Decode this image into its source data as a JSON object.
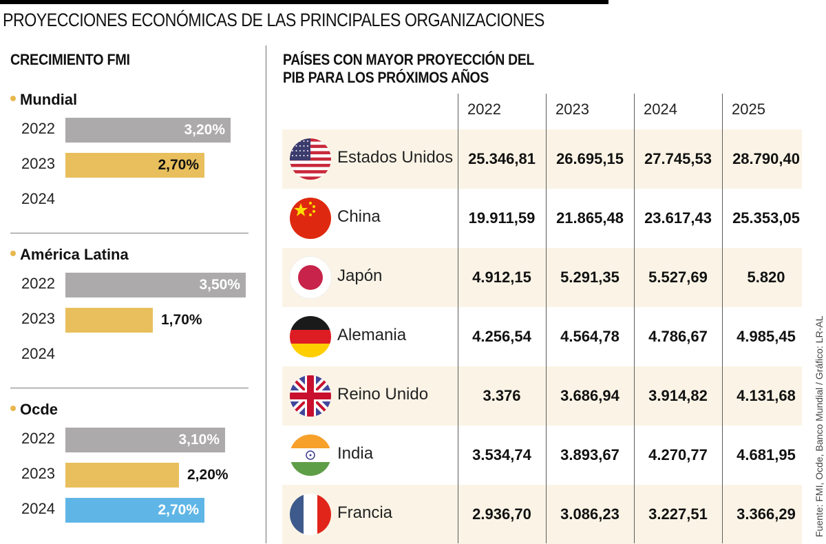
{
  "title": "PROYECCIONES ECONÓMICAS DE LAS PRINCIPALES ORGANIZACIONES",
  "source": "Fuente: FMI, Ocde, Banco Mundial / Gráfico: LR-AL",
  "chart_data": [
    {
      "type": "bar",
      "title": "CRECIMIENTO FMI",
      "orientation": "horizontal",
      "categories": [
        "2022",
        "2023",
        "2024"
      ],
      "value_unit": "%",
      "xlim": [
        0,
        3.5
      ],
      "colors": {
        "2022": "#acaaab",
        "2023": "#e8bf5c",
        "2024": "#5fb6e6"
      },
      "groups": [
        {
          "name": "Mundial",
          "values": [
            3.2,
            2.7,
            null
          ],
          "labels": [
            "3,20%",
            "2,70%",
            ""
          ]
        },
        {
          "name": "América Latina",
          "values": [
            3.5,
            1.7,
            null
          ],
          "labels": [
            "3,50%",
            "1,70%",
            ""
          ]
        },
        {
          "name": "Ocde",
          "values": [
            3.1,
            2.2,
            2.7
          ],
          "labels": [
            "3,10%",
            "2,20%",
            "2,70%"
          ]
        }
      ]
    },
    {
      "type": "table",
      "title": "PAÍSES CON MAYOR PROYECCIÓN DEL PIB PARA LOS PRÓXIMOS AÑOS",
      "title_lines": [
        "PAÍSES CON MAYOR PROYECCIÓN DEL",
        "PIB PARA LOS PRÓXIMOS AÑOS"
      ],
      "columns": [
        "2022",
        "2023",
        "2024",
        "2025"
      ],
      "rows": [
        {
          "country": "Estados Unidos",
          "flag": "us-flag-icon",
          "values": [
            "25.346,81",
            "26.695,15",
            "27.745,53",
            "28.790,40"
          ]
        },
        {
          "country": "China",
          "flag": "china-flag-icon",
          "values": [
            "19.911,59",
            "21.865,48",
            "23.617,43",
            "25.353,05"
          ]
        },
        {
          "country": "Japón",
          "flag": "japan-flag-icon",
          "values": [
            "4.912,15",
            "5.291,35",
            "5.527,69",
            "5.820"
          ]
        },
        {
          "country": "Alemania",
          "flag": "germany-flag-icon",
          "values": [
            "4.256,54",
            "4.564,78",
            "4.786,67",
            "4.985,45"
          ]
        },
        {
          "country": "Reino Unido",
          "flag": "uk-flag-icon",
          "values": [
            "3.376",
            "3.686,94",
            "3.914,82",
            "4.131,68"
          ]
        },
        {
          "country": "India",
          "flag": "india-flag-icon",
          "values": [
            "3.534,74",
            "3.893,67",
            "4.270,77",
            "4.681,95"
          ]
        },
        {
          "country": "Francia",
          "flag": "france-flag-icon",
          "values": [
            "2.936,70",
            "3.086,23",
            "3.227,51",
            "3.366,29"
          ]
        }
      ],
      "stripe_color": "#fbf4e6"
    }
  ]
}
